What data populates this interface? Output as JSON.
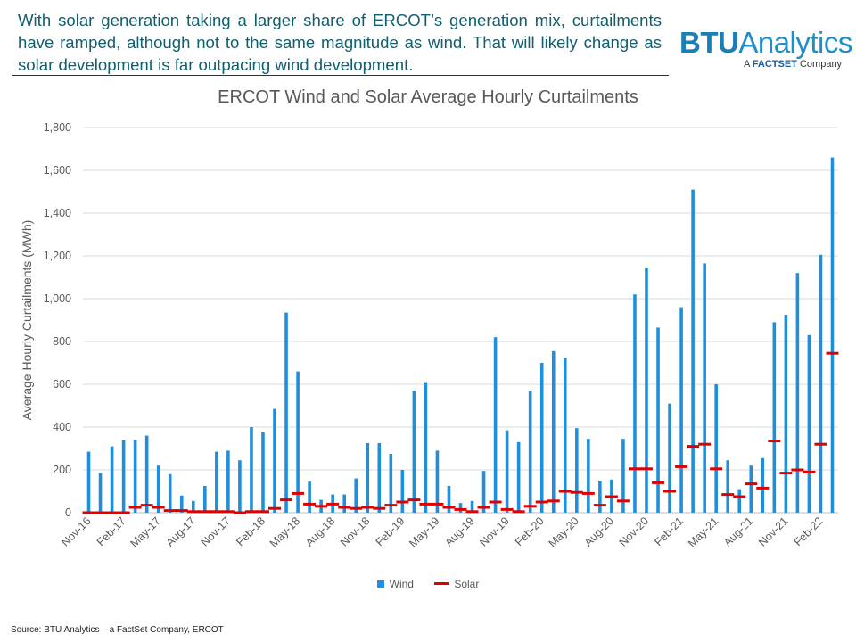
{
  "header": {
    "headline": "With solar generation taking a larger share of ERCOT’s generation mix, curtailments have ramped, although not to the same magnitude as wind. That will likely change as solar development is far outpacing wind development.",
    "brand_name_bold": "BTU",
    "brand_name_light": "Analytics",
    "brand_sub_prefix": "A ",
    "brand_sub_caps": "FACTSET",
    "brand_sub_suffix": " Company"
  },
  "footer": {
    "source": "Source: BTU Analytics – a FactSet Company, ERCOT"
  },
  "colors": {
    "wind": "#1f8fdc",
    "solar": "#e00000",
    "gridline": "#d9d9d9",
    "axis_text": "#595959"
  },
  "chart_data": {
    "type": "bar",
    "title": "ERCOT Wind and Solar Average Hourly Curtailments",
    "xlabel": "",
    "ylabel": "Average Hourly Curtailments (MWh)",
    "ylim": [
      0,
      1800
    ],
    "yticks": [
      "0",
      "200",
      "400",
      "600",
      "800",
      "1,000",
      "1,200",
      "1,400",
      "1,600",
      "1,800"
    ],
    "grid": true,
    "legend_position": "bottom",
    "categories": [
      "Nov-16",
      "Dec-16",
      "Jan-17",
      "Feb-17",
      "Mar-17",
      "Apr-17",
      "May-17",
      "Jun-17",
      "Jul-17",
      "Aug-17",
      "Sep-17",
      "Oct-17",
      "Nov-17",
      "Dec-17",
      "Jan-18",
      "Feb-18",
      "Mar-18",
      "Apr-18",
      "May-18",
      "Jun-18",
      "Jul-18",
      "Aug-18",
      "Sep-18",
      "Oct-18",
      "Nov-18",
      "Dec-18",
      "Jan-19",
      "Feb-19",
      "Mar-19",
      "Apr-19",
      "May-19",
      "Jun-19",
      "Jul-19",
      "Aug-19",
      "Sep-19",
      "Oct-19",
      "Nov-19",
      "Dec-19",
      "Jan-20",
      "Feb-20",
      "Mar-20",
      "Apr-20",
      "May-20",
      "Jun-20",
      "Jul-20",
      "Aug-20",
      "Sep-20",
      "Oct-20",
      "Nov-20",
      "Dec-20",
      "Jan-21",
      "Feb-21",
      "Mar-21",
      "Apr-21",
      "May-21",
      "Jun-21",
      "Jul-21",
      "Aug-21",
      "Sep-21",
      "Oct-21",
      "Nov-21",
      "Dec-21",
      "Jan-22",
      "Feb-22",
      "Mar-22"
    ],
    "tick_labels": [
      "Nov-16",
      "Feb-17",
      "May-17",
      "Aug-17",
      "Nov-17",
      "Feb-18",
      "May-18",
      "Aug-18",
      "Nov-18",
      "Feb-19",
      "May-19",
      "Aug-19",
      "Nov-19",
      "Feb-20",
      "May-20",
      "Aug-20",
      "Nov-20",
      "Feb-21",
      "May-21",
      "Aug-21",
      "Nov-21",
      "Feb-22"
    ],
    "series": [
      {
        "name": "Wind",
        "type": "bar",
        "values": [
          285,
          185,
          310,
          340,
          340,
          360,
          220,
          180,
          80,
          55,
          125,
          285,
          290,
          245,
          400,
          375,
          485,
          935,
          660,
          145,
          60,
          85,
          85,
          160,
          325,
          325,
          275,
          200,
          570,
          610,
          290,
          125,
          45,
          55,
          195,
          820,
          385,
          330,
          570,
          700,
          755,
          725,
          395,
          345,
          150,
          155,
          345,
          1020,
          1145,
          865,
          510,
          960,
          1510,
          1165,
          600,
          245,
          110,
          220,
          255,
          890,
          925,
          1120,
          830,
          1205,
          1660
        ]
      },
      {
        "name": "Solar",
        "type": "marker",
        "values": [
          0,
          0,
          0,
          0,
          25,
          35,
          25,
          10,
          10,
          5,
          5,
          5,
          5,
          0,
          5,
          5,
          20,
          60,
          90,
          40,
          30,
          40,
          25,
          20,
          25,
          20,
          35,
          50,
          60,
          40,
          40,
          25,
          15,
          5,
          25,
          50,
          15,
          5,
          30,
          50,
          55,
          100,
          95,
          90,
          35,
          75,
          55,
          205,
          205,
          140,
          100,
          215,
          310,
          320,
          205,
          85,
          75,
          135,
          115,
          335,
          185,
          200,
          190,
          320,
          745
        ]
      }
    ]
  }
}
